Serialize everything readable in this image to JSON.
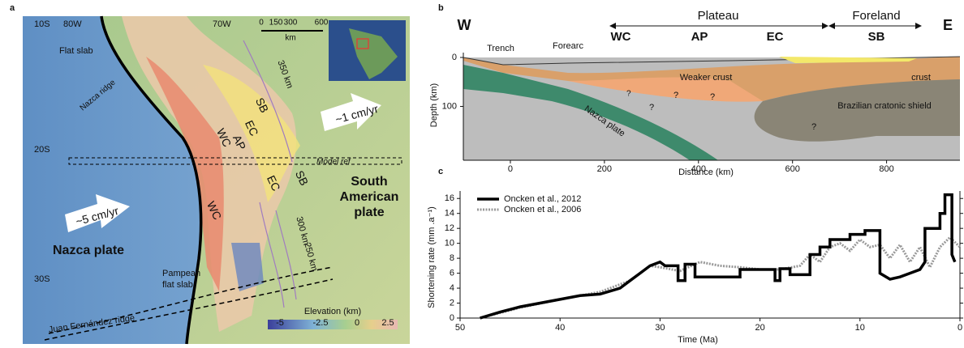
{
  "panel_a": {
    "letter": "a",
    "lat_labels": [
      "10S",
      "20S",
      "30S"
    ],
    "lon_labels": [
      "80W",
      "70W"
    ],
    "flat_slab": "Flat slab",
    "nazca_ridge": "Nazca ridge",
    "rate_sa": "~1 cm/yr",
    "rate_nazca": "~5 cm/yr",
    "nazca_plate": "Nazca plate",
    "sa_plate": [
      "South",
      "American",
      "plate"
    ],
    "pampean": [
      "Pampean",
      "flat slab"
    ],
    "juan_fernandez": "Juan Fernández ridge",
    "model_ref": "Model ref",
    "depth_contours": [
      "350 km",
      "300 km",
      "250 km"
    ],
    "units": [
      "WC",
      "AP",
      "EC",
      "SB",
      "EC",
      "SB",
      "WC"
    ],
    "scale_labels": [
      "0",
      "150",
      "300",
      "600"
    ],
    "scale_unit": "km",
    "elevation_title": "Elevation (km)",
    "elevation_ticks": [
      "-5",
      "-2.5",
      "0",
      "2.5"
    ]
  },
  "panel_b": {
    "letter": "b",
    "west": "W",
    "east": "E",
    "plateau": "Plateau",
    "foreland": "Foreland",
    "trench": "Trench",
    "forearc": "Forearc",
    "units": [
      "WC",
      "AP",
      "EC",
      "SB"
    ],
    "weaker_crust": "Weaker crust",
    "crust": "crust",
    "shield": "Brazilian cratonic shield",
    "nazca_plate": "Nazca plate",
    "unknown": [
      "?",
      "?",
      "?",
      "?",
      "?"
    ],
    "ylabel": "Depth (km)",
    "xlabel": "Distance (km)",
    "xlim": [
      -100,
      956
    ],
    "ylim": [
      0,
      210
    ],
    "xticks": [
      0,
      200,
      400,
      600,
      800
    ],
    "yticks": [
      0,
      100
    ]
  },
  "chart_data": {
    "type": "line",
    "letter": "c",
    "xlabel": "Time (Ma)",
    "ylabel": "Shortening rate (mm .a⁻¹)",
    "xlim": [
      50,
      0
    ],
    "ylim": [
      0,
      17
    ],
    "xticks": [
      50,
      40,
      30,
      20,
      10,
      0
    ],
    "yticks": [
      0,
      2,
      4,
      6,
      8,
      10,
      12,
      14,
      16
    ],
    "series": [
      {
        "name": "Oncken et al., 2012",
        "color": "#000000",
        "x": [
          48,
          46,
          44,
          42,
          40,
          38,
          36,
          34,
          33,
          32,
          31,
          30,
          29.5,
          28.2,
          28.2,
          27.5,
          27.5,
          26.5,
          26.5,
          22,
          22,
          18.5,
          18.5,
          18,
          18,
          17,
          17,
          15,
          15,
          14,
          14,
          13,
          13,
          11,
          11,
          9.5,
          9.5,
          8,
          8,
          7,
          6,
          5,
          4,
          3.5,
          3.5,
          2,
          2,
          1.5,
          1.5,
          0.8,
          0.8,
          0.5
        ],
        "values": [
          0,
          0.8,
          1.5,
          2,
          2.5,
          3,
          3.2,
          4,
          5,
          6,
          7,
          7.5,
          7,
          7,
          5,
          5,
          7.2,
          7.2,
          5.5,
          5.5,
          6.5,
          6.5,
          5,
          5,
          6.6,
          6.6,
          5.8,
          5.8,
          8.5,
          8.5,
          9.5,
          9.5,
          10.5,
          10.5,
          11.2,
          11.2,
          11.7,
          11.7,
          6,
          5.2,
          5.5,
          6,
          6.5,
          7.5,
          12,
          12,
          14,
          14,
          16.5,
          16.5,
          8.5,
          7.5
        ]
      },
      {
        "name": "Oncken et al., 2006",
        "color": "#999999",
        "x": [
          48,
          44,
          40,
          36,
          33,
          31,
          30,
          28,
          26,
          24,
          22,
          20,
          18,
          16,
          15,
          14,
          13,
          12,
          11,
          10,
          9,
          8,
          7,
          6,
          5,
          4,
          3,
          2,
          1,
          0
        ],
        "values": [
          0,
          1.4,
          2.5,
          3.5,
          5,
          7,
          6.8,
          6.3,
          7.5,
          7,
          6.8,
          6.5,
          6.5,
          7,
          8.5,
          7.5,
          9.5,
          10,
          9,
          10.5,
          9.5,
          9.8,
          8,
          9.8,
          7.5,
          9.5,
          6.8,
          9.5,
          10.8,
          9.5
        ]
      }
    ]
  }
}
